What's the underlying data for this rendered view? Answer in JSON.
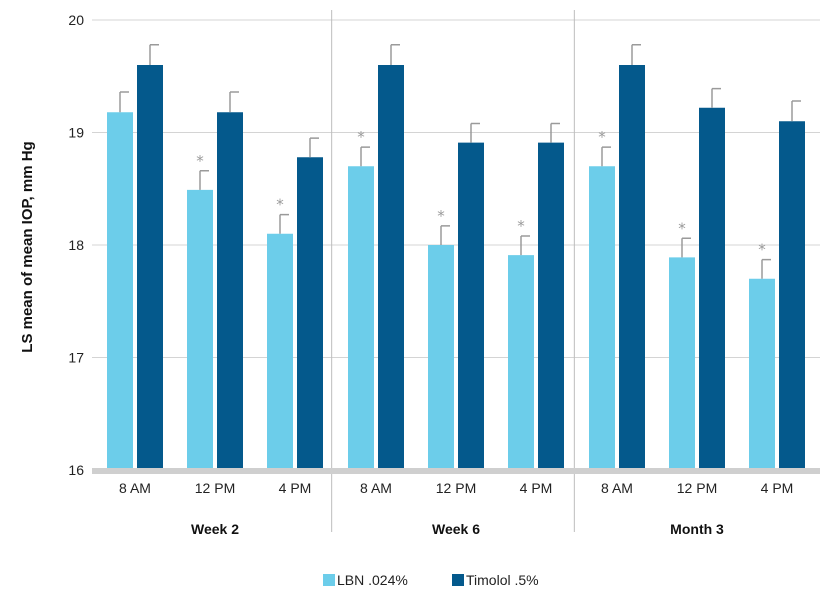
{
  "chart_data": {
    "type": "bar",
    "ylabel": "LS mean of mean IOP, mm Hg",
    "ylim": [
      16,
      20
    ],
    "yticks": [
      "16",
      "17",
      "18",
      "19",
      "20"
    ],
    "grid": true,
    "legend_position": "bottom",
    "groups": [
      {
        "name": "Week 2",
        "categories": [
          "8 AM",
          "12 PM",
          "4 PM"
        ]
      },
      {
        "name": "Week 6",
        "categories": [
          "8 AM",
          "12 PM",
          "4 PM"
        ]
      },
      {
        "name": "Month 3",
        "categories": [
          "8 AM",
          "12 PM",
          "4 PM"
        ]
      }
    ],
    "series": [
      {
        "name": "LBN .024%",
        "color": "#6ccdea",
        "values": [
          19.18,
          18.49,
          18.1,
          18.7,
          18.0,
          17.91,
          18.7,
          17.89,
          17.7
        ],
        "error": [
          0.18,
          0.17,
          0.17,
          0.17,
          0.17,
          0.17,
          0.17,
          0.17,
          0.17
        ],
        "significance": [
          "",
          "*",
          "*",
          "*",
          "*",
          "*",
          "*",
          "*",
          "*"
        ]
      },
      {
        "name": "Timolol .5%",
        "color": "#04598c",
        "values": [
          19.6,
          19.18,
          18.78,
          19.6,
          18.91,
          18.91,
          19.6,
          19.22,
          19.1
        ],
        "error": [
          0.18,
          0.18,
          0.17,
          0.18,
          0.17,
          0.17,
          0.18,
          0.17,
          0.18
        ],
        "significance": [
          "",
          "",
          "",
          "",
          "",
          "",
          "",
          "",
          ""
        ]
      }
    ]
  }
}
